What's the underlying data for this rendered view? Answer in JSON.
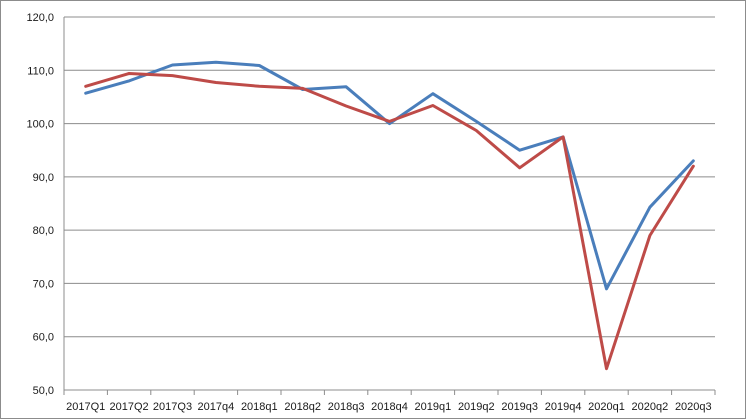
{
  "chart_data": {
    "type": "line",
    "title": "",
    "xlabel": "",
    "ylabel": "",
    "categories": [
      "2017Q1",
      "2017Q2",
      "2017Q3",
      "2017q4",
      "2018q1",
      "2018q2",
      "2018q3",
      "2018q4",
      "2019q1",
      "2019q2",
      "2019q3",
      "2019q4",
      "2020q1",
      "2020q2",
      "2020q3"
    ],
    "ylim": [
      50,
      120
    ],
    "yticks": [
      "50,0",
      "60,0",
      "70,0",
      "80,0",
      "90,0",
      "100,0",
      "110,0",
      "120,0"
    ],
    "grid": true,
    "legend": "none",
    "series": [
      {
        "color": "#4a7ebb",
        "values": [
          105.7,
          108.0,
          111.0,
          111.5,
          110.9,
          106.4,
          106.9,
          100.0,
          105.6,
          100.4,
          95.0,
          97.5,
          69.0,
          84.3,
          93.0
        ]
      },
      {
        "color": "#be4b48",
        "values": [
          107.0,
          109.4,
          109.0,
          107.7,
          107.0,
          106.6,
          103.3,
          100.4,
          103.4,
          98.7,
          91.7,
          97.5,
          54.0,
          79.0,
          92.0
        ]
      }
    ]
  }
}
